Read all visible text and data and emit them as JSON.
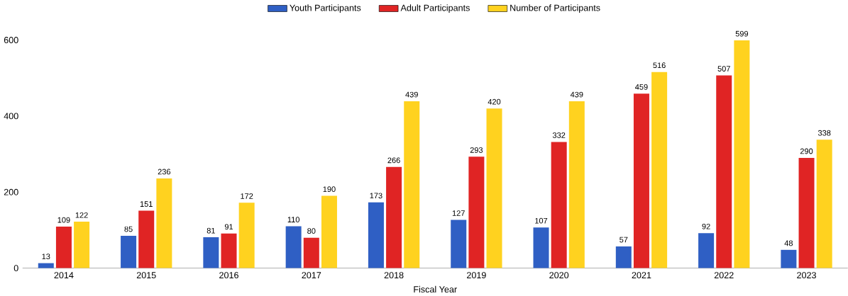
{
  "chart_data": {
    "type": "bar",
    "xlabel": "Fiscal Year",
    "categories": [
      "2014",
      "2015",
      "2016",
      "2017",
      "2018",
      "2019",
      "2020",
      "2021",
      "2022",
      "2023"
    ],
    "series": [
      {
        "name": "Youth Participants",
        "color": "#2f5fc4",
        "values": [
          13,
          85,
          81,
          110,
          173,
          127,
          107,
          57,
          92,
          48
        ]
      },
      {
        "name": "Adult Participants",
        "color": "#e02424",
        "values": [
          109,
          151,
          91,
          80,
          266,
          293,
          332,
          459,
          507,
          290
        ]
      },
      {
        "name": "Number of Participants",
        "color": "#ffd21f",
        "values": [
          122,
          236,
          172,
          190,
          439,
          420,
          439,
          516,
          599,
          338
        ]
      }
    ],
    "ylim": [
      0,
      600
    ],
    "yticks": [
      0,
      200,
      400,
      600
    ],
    "legend": "top",
    "data_labels": true
  }
}
